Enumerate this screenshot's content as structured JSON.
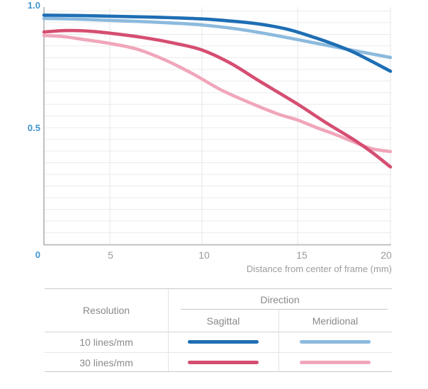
{
  "chart_data": {
    "type": "line",
    "xlabel": "Distance from center of frame (mm)",
    "ylabel": "",
    "xlim": [
      0,
      20
    ],
    "ylim": [
      0,
      1.0
    ],
    "x_tick_labels": [
      "5",
      "10",
      "15",
      "20"
    ],
    "y_tick_labels": [
      "1.0",
      "0.5",
      "0"
    ],
    "grid": {
      "horizontal_step": 0.05,
      "vertical_step_mm": 5,
      "grid_on": true
    },
    "legend_position": "bottom-table",
    "series": [
      {
        "name": "10 lines/mm Sagittal",
        "color": "#1e6eb4",
        "x": [
          0,
          2,
          4,
          6,
          8,
          10,
          11.5,
          13,
          14.5,
          16,
          17,
          18,
          19,
          20
        ],
        "y": [
          0.982,
          0.981,
          0.979,
          0.976,
          0.972,
          0.966,
          0.957,
          0.944,
          0.921,
          0.884,
          0.856,
          0.824,
          0.784,
          0.742
        ]
      },
      {
        "name": "10 lines/mm Meridional",
        "color": "#8cbade",
        "x": [
          0,
          2,
          4,
          6,
          8,
          10,
          12,
          14,
          16,
          18,
          20
        ],
        "y": [
          0.968,
          0.966,
          0.962,
          0.957,
          0.95,
          0.94,
          0.921,
          0.893,
          0.862,
          0.831,
          0.801
        ]
      },
      {
        "name": "30 lines/mm Sagittal",
        "color": "#d54e71",
        "x": [
          0,
          1.5,
          3,
          5,
          7,
          8.5,
          10,
          11.5,
          13,
          15,
          16.5,
          18,
          19,
          20
        ],
        "y": [
          0.91,
          0.916,
          0.915,
          0.905,
          0.884,
          0.862,
          0.833,
          0.776,
          0.7,
          0.601,
          0.523,
          0.45,
          0.395,
          0.332
        ]
      },
      {
        "name": "30 lines/mm Meridional",
        "color": "#f0a6ba",
        "x": [
          0,
          1.5,
          3,
          5,
          6.5,
          8,
          9.5,
          11,
          12.5,
          14,
          15,
          16,
          17,
          18,
          19,
          20
        ],
        "y": [
          0.895,
          0.89,
          0.878,
          0.861,
          0.836,
          0.79,
          0.731,
          0.662,
          0.607,
          0.558,
          0.533,
          0.501,
          0.472,
          0.44,
          0.41,
          0.398
        ]
      }
    ]
  },
  "legend_table": {
    "headers": {
      "resolution": "Resolution",
      "direction": "Direction",
      "sagittal": "Sagittal",
      "meridional": "Meridional"
    },
    "rows": [
      {
        "resolution": "10 lines/mm"
      },
      {
        "resolution": "30 lines/mm"
      }
    ]
  },
  "colors": {
    "y_axis_label": "#4095d0",
    "x_tick_label": "#999999",
    "axis_title": "#9c9c9c",
    "table_text": "#8a8a8a",
    "grid_line": "#ebebeb",
    "axis_line": "#c0c0c0"
  }
}
